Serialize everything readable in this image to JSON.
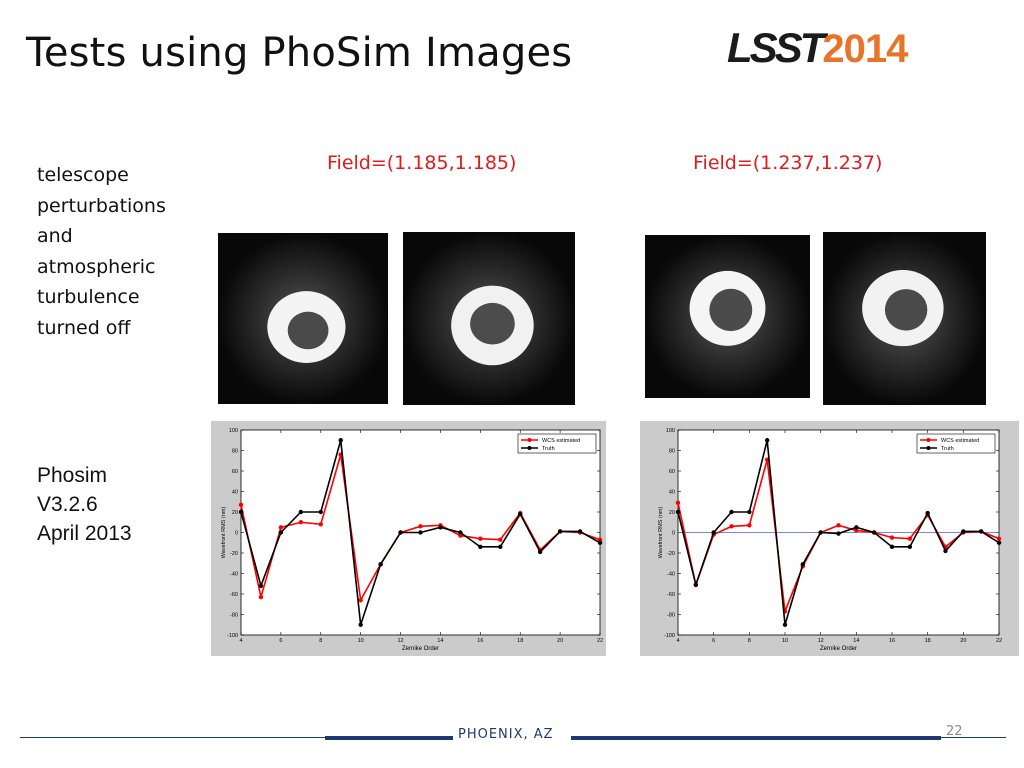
{
  "slide": {
    "title": "Tests using PhoSim Images",
    "logo": {
      "main": "LSST",
      "year": "2014"
    },
    "side_text": [
      "telescope",
      "perturbations",
      "and",
      "atmospheric",
      "turbulence",
      "turned off"
    ],
    "version_text": [
      "Phosim",
      "V3.2.6",
      "April 2013"
    ],
    "field_labels": [
      "Field=(1.185,1.185)",
      "Field=(1.237,1.237)"
    ],
    "footer": "PHOENIX, AZ",
    "page_number": "22"
  },
  "colors": {
    "estimated": "#ff0000",
    "truth": "#000000",
    "zero_line": "#4b5fd6",
    "footer": "#1d3a6e",
    "logo_accent": "#e8742a"
  },
  "chart_data": [
    {
      "type": "line",
      "xlabel": "Zernike Order",
      "ylabel": "Wavefront RMS (nm)",
      "xlim": [
        4,
        22
      ],
      "ylim": [
        -100,
        100
      ],
      "xticks": [
        4,
        6,
        8,
        10,
        12,
        14,
        16,
        18,
        20,
        22
      ],
      "yticks": [
        100,
        80,
        60,
        40,
        20,
        0,
        -20,
        -40,
        -60,
        -80,
        -100
      ],
      "zero_line": false,
      "legend_position": "top-right",
      "x": [
        4,
        5,
        6,
        7,
        8,
        9,
        10,
        11,
        12,
        13,
        14,
        15,
        16,
        17,
        18,
        19,
        20,
        21,
        22
      ],
      "series": [
        {
          "name": "WCS estimated",
          "values": [
            27,
            -63,
            5,
            10,
            8,
            76,
            -66,
            -31,
            0,
            6,
            7,
            -3,
            -6,
            -7,
            19,
            -17,
            1,
            0,
            -7
          ]
        },
        {
          "name": "Truth",
          "values": [
            20,
            -52,
            0,
            20,
            20,
            90,
            -90,
            -31,
            0,
            0,
            5,
            0,
            -14,
            -14,
            18,
            -19,
            1,
            1,
            -10
          ]
        }
      ]
    },
    {
      "type": "line",
      "xlabel": "Zernike Order",
      "ylabel": "Wavefront RMS (nm)",
      "xlim": [
        4,
        22
      ],
      "ylim": [
        -100,
        100
      ],
      "xticks": [
        4,
        6,
        8,
        10,
        12,
        14,
        16,
        18,
        20,
        22
      ],
      "yticks": [
        100,
        80,
        60,
        40,
        20,
        0,
        -20,
        -40,
        -60,
        -80,
        -100
      ],
      "zero_line": true,
      "legend_position": "top-right",
      "x": [
        4,
        5,
        6,
        7,
        8,
        9,
        10,
        11,
        12,
        13,
        14,
        15,
        16,
        17,
        18,
        19,
        20,
        21,
        22
      ],
      "series": [
        {
          "name": "WCS estimated",
          "values": [
            29,
            -51,
            -2,
            6,
            7,
            71,
            -77,
            -33,
            0,
            7,
            2,
            0,
            -5,
            -6,
            17,
            -14,
            0,
            1,
            -6
          ]
        },
        {
          "name": "Truth",
          "values": [
            20,
            -51,
            0,
            20,
            20,
            90,
            -90,
            -31,
            0,
            -1,
            5,
            0,
            -14,
            -14,
            19,
            -18,
            1,
            1,
            -10
          ]
        }
      ]
    }
  ]
}
